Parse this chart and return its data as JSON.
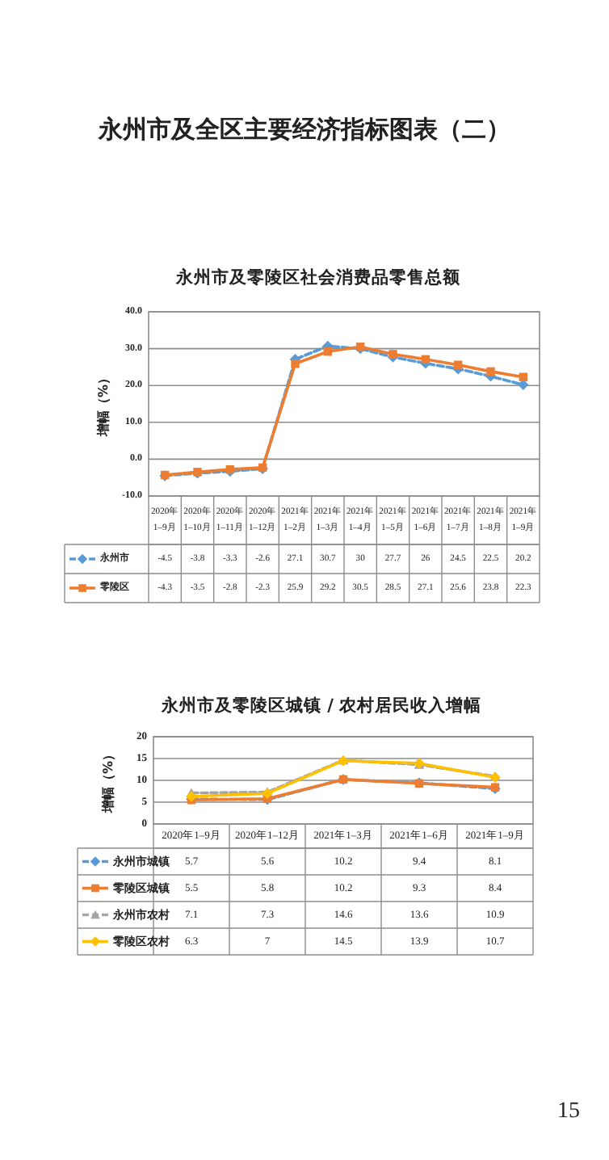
{
  "chart_data": [
    {
      "type": "line",
      "title": "永州市及零陵区社会消费品零售总额",
      "ylabel": "增幅（%）",
      "annotations": [
        "永州市及全区主要经济指标图表（二）"
      ],
      "categories": [
        "2020年1–9月",
        "2020年1–10月",
        "2020年1–11月",
        "2020年1–12月",
        "2021年1–2月",
        "2021年1–3月",
        "2021年1–4月",
        "2021年1–5月",
        "2021年1–6月",
        "2021年1–7月",
        "2021年1–8月",
        "2021年1–9月"
      ],
      "ylim": [
        -10,
        40
      ],
      "yticks": [
        {
          "value": -10,
          "label": "-10.0"
        },
        {
          "value": 0,
          "label": "0.0"
        },
        {
          "value": 10,
          "label": "10.0"
        },
        {
          "value": 20,
          "label": "20.0"
        },
        {
          "value": 30,
          "label": "30.0"
        },
        {
          "value": 40,
          "label": "40.0"
        }
      ],
      "grid": "y",
      "legend": "bottom",
      "data_labels": true,
      "series": [
        {
          "name": "永州市",
          "color": "#5b9bd5",
          "marker": "diamond",
          "line_style": "dashed",
          "values": [
            -4.5,
            -3.8,
            -3.3,
            -2.6,
            27.1,
            30.7,
            30,
            27.7,
            26,
            24.5,
            22.5,
            20.2
          ]
        },
        {
          "name": "零陵区",
          "color": "#ed7d31",
          "marker": "square",
          "line_style": "solid",
          "values": [
            -4.3,
            -3.5,
            -2.8,
            -2.3,
            25.9,
            29.2,
            30.5,
            28.5,
            27.1,
            25.6,
            23.8,
            22.3
          ]
        }
      ]
    },
    {
      "type": "line",
      "title": "永州市及零陵区城镇 / 农村居民收入增幅",
      "ylabel": "增幅（%）",
      "annotations": [
        "15"
      ],
      "categories": [
        "2020年1–9月",
        "2020年1–12月",
        "2021年1–3月",
        "2021年1–6月",
        "2021年1–9月"
      ],
      "ylim": [
        0,
        20
      ],
      "yticks": [
        0,
        5,
        10,
        15,
        20
      ],
      "grid": "y",
      "legend": "bottom",
      "data_labels": true,
      "series": [
        {
          "name": "永州市城镇",
          "color": "#5b9bd5",
          "marker": "diamond",
          "line_style": "dashed",
          "values": [
            5.7,
            5.6,
            10.2,
            9.4,
            8.1
          ]
        },
        {
          "name": "零陵区城镇",
          "color": "#ed7d31",
          "marker": "square",
          "line_style": "solid",
          "values": [
            5.5,
            5.8,
            10.2,
            9.3,
            8.4
          ]
        },
        {
          "name": "永州市农村",
          "color": "#a5a5a5",
          "marker": "triangle",
          "line_style": "dashed",
          "values": [
            7.1,
            7.3,
            14.6,
            13.6,
            10.9
          ]
        },
        {
          "name": "零陵区农村",
          "color": "#ffc000",
          "marker": "diamond",
          "line_style": "solid",
          "values": [
            6.3,
            7,
            14.5,
            13.9,
            10.7
          ]
        }
      ]
    }
  ]
}
